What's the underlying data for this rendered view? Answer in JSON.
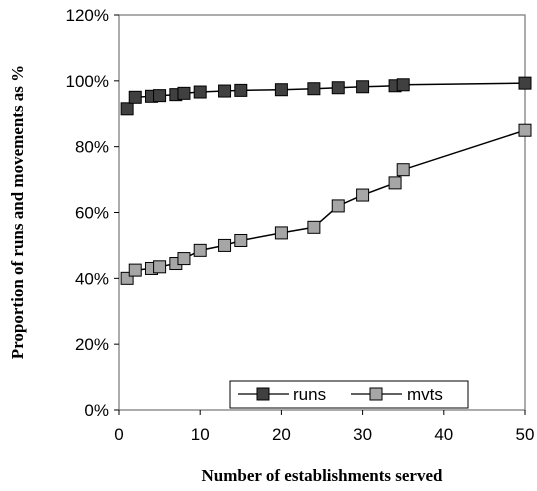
{
  "chart_data": {
    "type": "line",
    "title": "",
    "xlabel": "Number of establishments served",
    "ylabel": "Proportion of runs and movements as %",
    "xlim": [
      0,
      50
    ],
    "ylim": [
      0,
      120
    ],
    "xticks": [
      0,
      10,
      20,
      30,
      40,
      50
    ],
    "yticks": [
      0,
      20,
      40,
      60,
      80,
      100,
      120
    ],
    "ytick_labels": [
      "0%",
      "20%",
      "40%",
      "60%",
      "80%",
      "100%",
      "120%"
    ],
    "grid": false,
    "legend_position": "bottom-right",
    "series": [
      {
        "name": "runs",
        "color": "#404040",
        "points": [
          [
            1,
            91.5
          ],
          [
            2,
            95
          ],
          [
            4,
            95.3
          ],
          [
            5,
            95.5
          ],
          [
            7,
            95.8
          ],
          [
            8,
            96.2
          ],
          [
            10,
            96.6
          ],
          [
            13,
            96.9
          ],
          [
            15,
            97.1
          ],
          [
            20,
            97.3
          ],
          [
            24,
            97.6
          ],
          [
            27,
            97.9
          ],
          [
            30,
            98.2
          ],
          [
            34,
            98.5
          ],
          [
            35,
            98.8
          ],
          [
            50,
            99.3
          ]
        ]
      },
      {
        "name": "mvts",
        "color": "#a6a6a6",
        "points": [
          [
            1,
            40
          ],
          [
            2,
            42.5
          ],
          [
            4,
            43
          ],
          [
            5,
            43.5
          ],
          [
            7,
            44.5
          ],
          [
            8,
            46
          ],
          [
            10,
            48.5
          ],
          [
            13,
            50
          ],
          [
            15,
            51.5
          ],
          [
            20,
            53.8
          ],
          [
            24,
            55.5
          ],
          [
            27,
            62
          ],
          [
            30,
            65.3
          ],
          [
            34,
            69
          ],
          [
            35,
            73
          ],
          [
            50,
            85
          ]
        ]
      }
    ]
  }
}
